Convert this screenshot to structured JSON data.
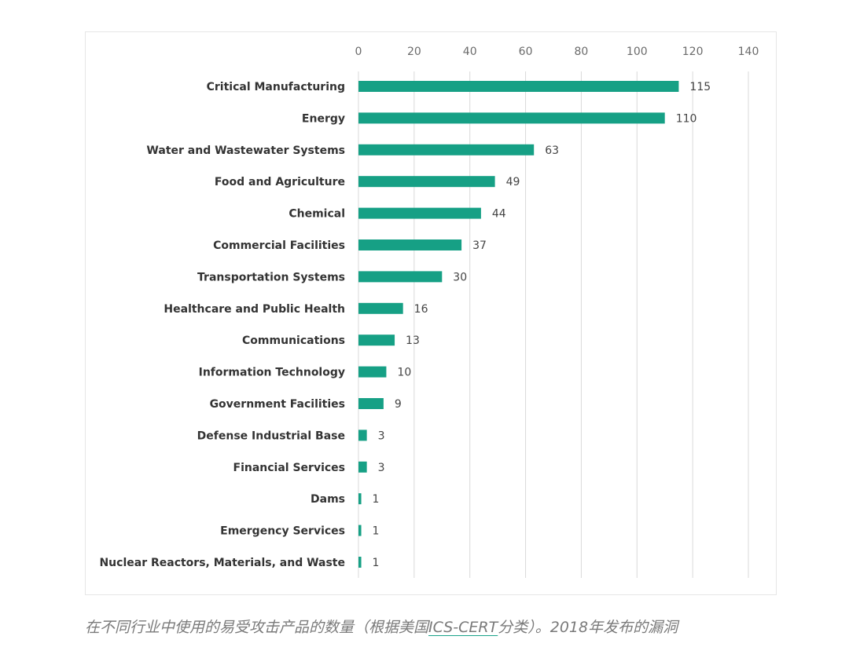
{
  "chart_data": {
    "type": "bar",
    "orientation": "horizontal",
    "categories": [
      "Critical Manufacturing",
      "Energy",
      "Water and Wastewater Systems",
      "Food and Agriculture",
      "Chemical",
      "Commercial Facilities",
      "Transportation Systems",
      "Healthcare and Public Health",
      "Communications",
      "Information Technology",
      "Government Facilities",
      "Defense Industrial Base",
      "Financial Services",
      "Dams",
      "Emergency Services",
      "Nuclear Reactors, Materials, and Waste"
    ],
    "values": [
      115,
      110,
      63,
      49,
      44,
      37,
      30,
      16,
      13,
      10,
      9,
      3,
      3,
      1,
      1,
      1
    ],
    "xlim": [
      0,
      140
    ],
    "xticks": [
      0,
      20,
      40,
      60,
      80,
      100,
      120,
      140
    ],
    "x_axis_position": "top",
    "grid": true,
    "data_labels": true,
    "legend": "none",
    "bar_color": "#16a085",
    "grid_color": "#d9d9d9"
  },
  "caption": {
    "before": "在不同行业中使用的易受攻击产品的数量（根据美国",
    "link": "ICS-CERT",
    "after": "分类）。2018年发布的漏洞"
  }
}
